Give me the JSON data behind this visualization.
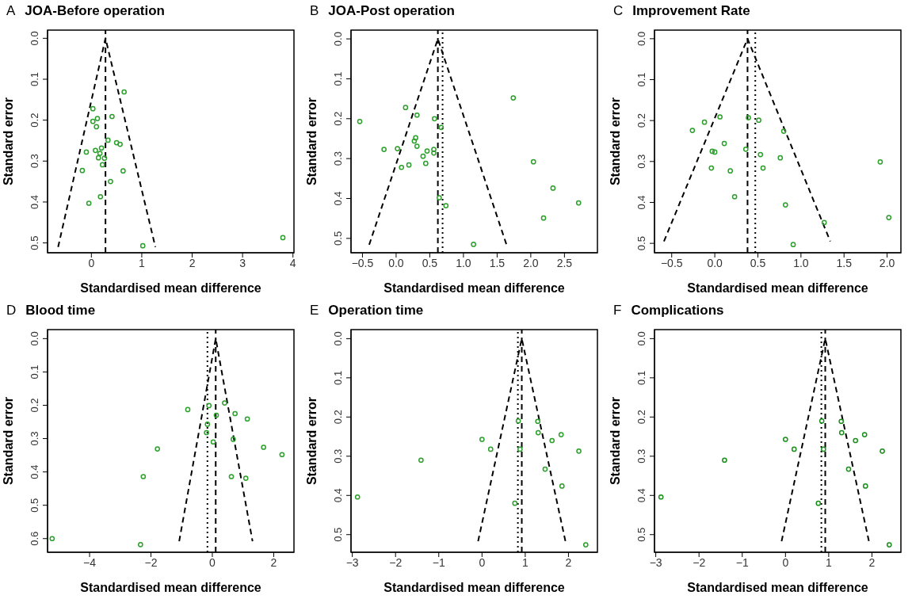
{
  "chart_data": [
    {
      "type": "scatter",
      "title": "JOA-Before operation",
      "annotations": [
        "A"
      ],
      "xlabel": "Standardised mean difference",
      "ylabel": "Standard error",
      "xlim": [
        -0.87,
        4.02
      ],
      "ylim": [
        0.524,
        -0.02
      ],
      "xticks": [
        0,
        1,
        2,
        3,
        4
      ],
      "yticks": [
        {
          "value": 0,
          "label": "0.0"
        },
        {
          "value": 0.1,
          "label": "0.1"
        },
        {
          "value": 0.2,
          "label": "0.2"
        },
        {
          "value": 0.3,
          "label": "0.3"
        },
        {
          "value": 0.4,
          "label": "0.4"
        },
        {
          "value": 0.5,
          "label": "0.5"
        }
      ],
      "series": [
        {
          "type": "scatter",
          "color": "#2ca02c",
          "marker": "circle",
          "x": [
            0.65,
            0.03,
            0.03,
            0.12,
            0.1,
            0.41,
            0.33,
            0.5,
            0.57,
            -0.1,
            0.08,
            0.2,
            0.17,
            0.14,
            0.26,
            0.22,
            -0.18,
            0.63,
            0.38,
            0.18,
            -0.05,
            1.02,
            3.8
          ],
          "values": [
            0.131,
            0.172,
            0.203,
            0.196,
            0.216,
            0.191,
            0.249,
            0.255,
            0.259,
            0.278,
            0.274,
            0.268,
            0.281,
            0.292,
            0.293,
            0.309,
            0.323,
            0.324,
            0.35,
            0.387,
            0.403,
            0.507,
            0.487
          ]
        },
        {
          "type": "line",
          "color": "#000000",
          "line_style": "dashed",
          "marker": "none",
          "x": [
            -0.66,
            0.28,
            1.27
          ],
          "values": [
            0.51,
            0,
            0.51
          ]
        }
      ],
      "ref_lines": [
        {
          "axis": "x",
          "value": 0.28,
          "color": "#000000",
          "line_style": "dashed"
        }
      ]
    },
    {
      "type": "scatter",
      "title": "JOA-Post operation",
      "annotations": [
        "B"
      ],
      "xlabel": "Standardised mean difference",
      "ylabel": "Standard error",
      "xlim": [
        -0.67,
        2.99
      ],
      "ylim": [
        0.536,
        -0.022
      ],
      "xticks": [
        {
          "value": -0.5,
          "label": "−0.5"
        },
        {
          "value": 0,
          "label": "0.0"
        },
        0.5,
        {
          "value": 1,
          "label": "1.0"
        },
        1.5,
        {
          "value": 2,
          "label": "2.0"
        },
        2.5
      ],
      "yticks": [
        {
          "value": 0,
          "label": "0.0"
        },
        {
          "value": 0.1,
          "label": "0.1"
        },
        {
          "value": 0.2,
          "label": "0.2"
        },
        {
          "value": 0.3,
          "label": "0.3"
        },
        {
          "value": 0.4,
          "label": "0.4"
        },
        {
          "value": 0.5,
          "label": "0.5"
        }
      ],
      "series": [
        {
          "type": "scatter",
          "color": "#2ca02c",
          "marker": "circle",
          "x": [
            -0.54,
            1.74,
            0.14,
            0.31,
            0.57,
            0.67,
            0.29,
            0.27,
            0.31,
            -0.18,
            0.02,
            0.46,
            0.56,
            0.56,
            0.4,
            0.44,
            0.19,
            0.08,
            2.04,
            2.33,
            0.64,
            0.74,
            2.71,
            2.19,
            1.15
          ],
          "values": [
            0.207,
            0.148,
            0.172,
            0.191,
            0.2,
            0.222,
            0.248,
            0.256,
            0.269,
            0.277,
            0.275,
            0.281,
            0.277,
            0.286,
            0.294,
            0.312,
            0.316,
            0.322,
            0.308,
            0.374,
            0.398,
            0.418,
            0.411,
            0.449,
            0.515
          ]
        },
        {
          "type": "line",
          "color": "#000000",
          "line_style": "dashed",
          "marker": "none",
          "x": [
            -0.4,
            0.62,
            1.64
          ],
          "values": [
            0.516,
            0,
            0.516
          ]
        }
      ],
      "ref_lines": [
        {
          "axis": "x",
          "value": 0.62,
          "color": "#000000",
          "line_style": "dashed"
        },
        {
          "axis": "x",
          "value": 0.69,
          "color": "#000000",
          "line_style": "dotted"
        }
      ]
    },
    {
      "type": "scatter",
      "title": "Improvement Rate",
      "annotations": [
        "C"
      ],
      "xlabel": "Standardised mean difference",
      "ylabel": "Standard error",
      "xlim": [
        -0.7,
        2.16
      ],
      "ylim": [
        0.523,
        -0.021
      ],
      "xticks": [
        {
          "value": -0.5,
          "label": "−0.5"
        },
        {
          "value": 0,
          "label": "0.0"
        },
        0.5,
        {
          "value": 1,
          "label": "1.0"
        },
        1.5,
        {
          "value": 2,
          "label": "2.0"
        }
      ],
      "yticks": [
        {
          "value": 0,
          "label": "0.0"
        },
        {
          "value": 0.1,
          "label": "0.1"
        },
        {
          "value": 0.2,
          "label": "0.2"
        },
        {
          "value": 0.3,
          "label": "0.3"
        },
        {
          "value": 0.4,
          "label": "0.4"
        },
        {
          "value": 0.5,
          "label": "0.5"
        }
      ],
      "series": [
        {
          "type": "scatter",
          "color": "#2ca02c",
          "marker": "circle",
          "x": [
            -0.26,
            -0.12,
            0.06,
            0.39,
            0.51,
            0.8,
            0.11,
            -0.03,
            0.0,
            0.36,
            0.53,
            0.76,
            -0.04,
            0.18,
            0.56,
            1.92,
            0.23,
            0.82,
            1.27,
            2.02,
            0.91
          ],
          "values": [
            0.224,
            0.204,
            0.191,
            0.193,
            0.199,
            0.226,
            0.256,
            0.275,
            0.277,
            0.27,
            0.283,
            0.291,
            0.316,
            0.323,
            0.316,
            0.301,
            0.386,
            0.406,
            0.449,
            0.437,
            0.503
          ]
        },
        {
          "type": "line",
          "color": "#000000",
          "line_style": "dashed",
          "marker": "none",
          "x": [
            -0.59,
            0.38,
            1.34
          ],
          "values": [
            0.495,
            0,
            0.495
          ]
        }
      ],
      "ref_lines": [
        {
          "axis": "x",
          "value": 0.38,
          "color": "#000000",
          "line_style": "dashed"
        },
        {
          "axis": "x",
          "value": 0.47,
          "color": "#000000",
          "line_style": "dotted"
        }
      ]
    },
    {
      "type": "scatter",
      "title": "Blood time",
      "annotations": [
        "D"
      ],
      "xlabel": "Standardised mean difference",
      "ylabel": "Standard error",
      "xlim": [
        -5.37,
        2.66
      ],
      "ylim": [
        0.641,
        -0.027
      ],
      "xticks": [
        {
          "value": -4,
          "label": "−4"
        },
        {
          "value": -2,
          "label": "−2"
        },
        0,
        2
      ],
      "yticks": [
        {
          "value": 0,
          "label": "0.0"
        },
        {
          "value": 0.1,
          "label": "0.1"
        },
        {
          "value": 0.2,
          "label": "0.2"
        },
        {
          "value": 0.3,
          "label": "0.3"
        },
        {
          "value": 0.4,
          "label": "0.4"
        },
        {
          "value": 0.5,
          "label": "0.5"
        },
        {
          "value": 0.6,
          "label": "0.6"
        }
      ],
      "series": [
        {
          "type": "scatter",
          "color": "#2ca02c",
          "marker": "circle",
          "x": [
            -0.8,
            -0.11,
            0.4,
            0.13,
            0.74,
            1.14,
            -0.16,
            -0.19,
            0.03,
            0.68,
            1.67,
            2.27,
            -1.79,
            -2.25,
            0.62,
            1.09,
            -5.22,
            -2.34
          ],
          "values": [
            0.213,
            0.201,
            0.193,
            0.23,
            0.225,
            0.241,
            0.257,
            0.282,
            0.31,
            0.302,
            0.326,
            0.348,
            0.331,
            0.414,
            0.414,
            0.419,
            0.6,
            0.618
          ]
        },
        {
          "type": "line",
          "color": "#000000",
          "line_style": "dashed",
          "marker": "none",
          "x": [
            -1.08,
            0.11,
            1.31
          ],
          "values": [
            0.608,
            0,
            0.608
          ]
        }
      ],
      "ref_lines": [
        {
          "axis": "x",
          "value": 0.11,
          "color": "#000000",
          "line_style": "dashed"
        },
        {
          "axis": "x",
          "value": -0.16,
          "color": "#000000",
          "line_style": "dotted"
        }
      ]
    },
    {
      "type": "scatter",
      "title": "Operation time",
      "annotations": [
        "E"
      ],
      "xlabel": "Standardised mean difference",
      "ylabel": "Standard error",
      "xlim": [
        -3.03,
        2.67
      ],
      "ylim": [
        0.545,
        -0.023
      ],
      "xticks": [
        {
          "value": -3,
          "label": "−3"
        },
        {
          "value": -2,
          "label": "−2"
        },
        {
          "value": -1,
          "label": "−1"
        },
        0,
        1,
        2
      ],
      "yticks": [
        {
          "value": 0,
          "label": "0.0"
        },
        {
          "value": 0.1,
          "label": "0.1"
        },
        {
          "value": 0.2,
          "label": "0.2"
        },
        {
          "value": 0.3,
          "label": "0.3"
        },
        {
          "value": 0.4,
          "label": "0.4"
        },
        {
          "value": 0.5,
          "label": "0.5"
        }
      ],
      "series": [
        {
          "type": "scatter",
          "color": "#2ca02c",
          "marker": "circle",
          "x": [
            0.84,
            1.29,
            1.3,
            1.83,
            0.0,
            1.62,
            0.2,
            0.88,
            2.24,
            -1.41,
            1.46,
            1.85,
            -2.88,
            0.76,
            2.4
          ],
          "values": [
            0.21,
            0.211,
            0.24,
            0.245,
            0.257,
            0.26,
            0.282,
            0.282,
            0.287,
            0.31,
            0.333,
            0.376,
            0.404,
            0.42,
            0.526
          ]
        },
        {
          "type": "line",
          "color": "#000000",
          "line_style": "dashed",
          "marker": "none",
          "x": [
            -0.09,
            0.92,
            1.93
          ],
          "values": [
            0.517,
            0,
            0.517
          ]
        }
      ],
      "ref_lines": [
        {
          "axis": "x",
          "value": 0.92,
          "color": "#000000",
          "line_style": "dashed"
        },
        {
          "axis": "x",
          "value": 0.83,
          "color": "#000000",
          "line_style": "dotted"
        }
      ]
    },
    {
      "type": "scatter",
      "title": "Complications",
      "annotations": [
        "F"
      ],
      "xlabel": "Standardised mean difference",
      "ylabel": "Standard error",
      "xlim": [
        -3.03,
        2.67
      ],
      "ylim": [
        0.545,
        -0.023
      ],
      "xticks": [
        {
          "value": -3,
          "label": "−3"
        },
        {
          "value": -2,
          "label": "−2"
        },
        {
          "value": -1,
          "label": "−1"
        },
        0,
        1,
        2
      ],
      "yticks": [
        {
          "value": 0,
          "label": "0.0"
        },
        {
          "value": 0.1,
          "label": "0.1"
        },
        {
          "value": 0.2,
          "label": "0.2"
        },
        {
          "value": 0.3,
          "label": "0.3"
        },
        {
          "value": 0.4,
          "label": "0.4"
        },
        {
          "value": 0.5,
          "label": "0.5"
        }
      ],
      "series": [
        {
          "type": "scatter",
          "color": "#1a8f1a",
          "marker": "circle",
          "x": [
            0.84,
            1.29,
            1.3,
            1.83,
            0.0,
            1.62,
            0.2,
            0.88,
            2.24,
            -1.41,
            1.46,
            1.85,
            -2.88,
            0.76,
            2.4
          ],
          "values": [
            0.21,
            0.211,
            0.24,
            0.245,
            0.257,
            0.26,
            0.282,
            0.282,
            0.287,
            0.31,
            0.333,
            0.376,
            0.404,
            0.42,
            0.526
          ]
        },
        {
          "type": "line",
          "color": "#000000",
          "line_style": "dashed",
          "marker": "none",
          "x": [
            -0.09,
            0.92,
            1.93
          ],
          "values": [
            0.517,
            0,
            0.517
          ]
        }
      ],
      "ref_lines": [
        {
          "axis": "x",
          "value": 0.92,
          "color": "#000000",
          "line_style": "dashed"
        },
        {
          "axis": "x",
          "value": 0.83,
          "color": "#000000",
          "line_style": "dotted"
        }
      ]
    }
  ]
}
